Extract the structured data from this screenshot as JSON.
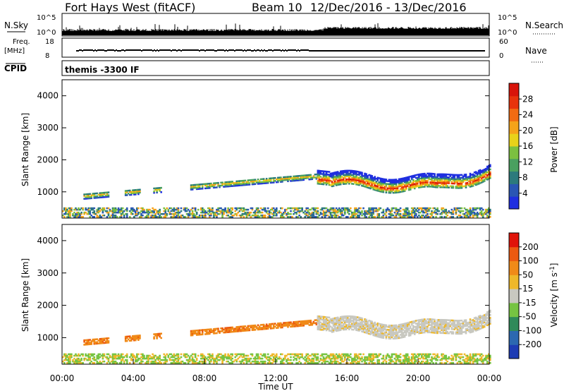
{
  "header": {
    "station": "Fort Hays West (fitACF)",
    "beam": "Beam 10",
    "date_range": "12/Dec/2016 - 13/Dec/2016"
  },
  "strip_labels": {
    "nsky": "N.Sky",
    "nsky_top": "10^5",
    "nsky_bottom": "10^0",
    "nsearch": "N.Search",
    "nsearch_top": "10^5",
    "nsearch_bottom": "10^0",
    "freq_line1": "Freq.",
    "freq_line2": "[MHz]",
    "freq_top": "18",
    "freq_bottom": "8",
    "nave": "Nave",
    "nave_top": "60",
    "nave_bottom": "0",
    "cpid": "CPID",
    "cpid_value": "themis -3300 IF"
  },
  "chart_data": [
    {
      "type": "heatmap",
      "name": "power",
      "ylabel": "Slant Range [km]",
      "yticks": [
        1000,
        2000,
        3000,
        4000
      ],
      "ylim": [
        180,
        4500
      ],
      "xlim": [
        0,
        24
      ],
      "colorbar": {
        "label": "Power [dB]",
        "ticks": [
          "4",
          "8",
          "12",
          "16",
          "20",
          "24",
          "28"
        ],
        "colors": [
          "#1f2fe0",
          "#2a56b4",
          "#2c7a7c",
          "#4aa060",
          "#7cc040",
          "#e8d21a",
          "#f5a31a",
          "#f26b12",
          "#e8330c",
          "#d8140a"
        ]
      }
    },
    {
      "type": "heatmap",
      "name": "velocity",
      "ylabel": "Slant Range [km]",
      "yticks": [
        1000,
        2000,
        3000,
        4000
      ],
      "ylim": [
        180,
        4500
      ],
      "xlim": [
        0,
        24
      ],
      "xlabel": "Time UT",
      "xticks": [
        "00:00",
        "04:00",
        "08:00",
        "12:00",
        "16:00",
        "20:00",
        "00:00"
      ],
      "colorbar": {
        "label": "Velocity [m s^-1]",
        "ticks": [
          "200",
          "100",
          "50",
          "15",
          "-15",
          "-50",
          "-100",
          "-200"
        ],
        "colors": [
          "#1e3cb4",
          "#2c68b0",
          "#2f8a5a",
          "#76c442",
          "#c8c8c0",
          "#eeb82a",
          "#f08a18",
          "#ec5a10",
          "#e0140a"
        ]
      }
    }
  ],
  "colors": {
    "frame": "#000000",
    "ground_green": "#7cc040",
    "noise": "#2a56b4"
  }
}
